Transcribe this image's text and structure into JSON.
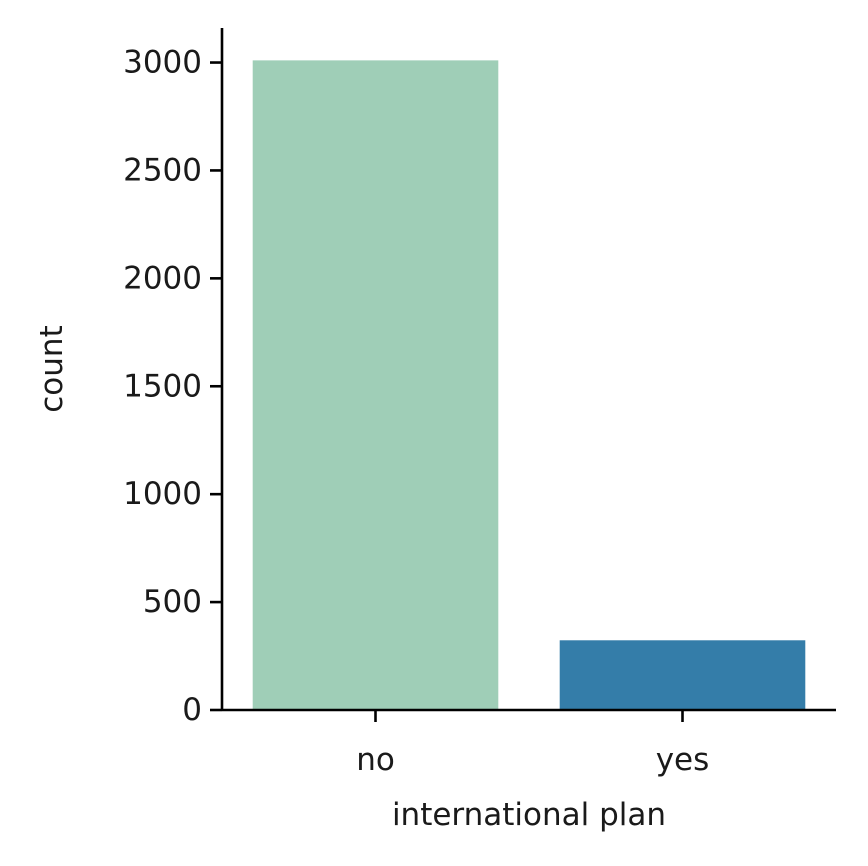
{
  "chart_data": {
    "type": "bar",
    "categories": [
      "no",
      "yes"
    ],
    "values": [
      3010,
      323
    ],
    "colors": [
      "#9fceb7",
      "#347da9"
    ],
    "xlabel": "international plan",
    "ylabel": "count",
    "ylim": [
      0,
      3160
    ],
    "yticks": [
      0,
      500,
      1000,
      1500,
      2000,
      2500,
      3000
    ],
    "grid": false,
    "legend": "none"
  }
}
